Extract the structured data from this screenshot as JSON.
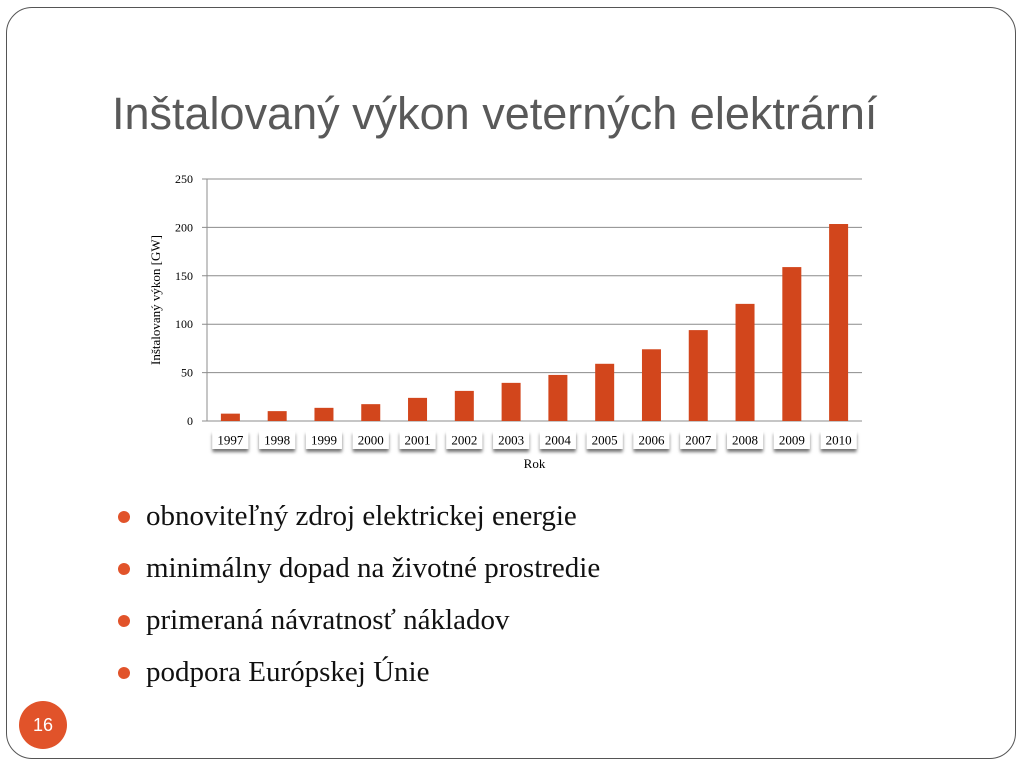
{
  "slide": {
    "title": "Inštalovaný výkon veterných elektrární",
    "page_number": "16",
    "accent_color": "#e1532a"
  },
  "bullets": [
    "obnoviteľný zdroj elektrickej energie",
    "minimálny dopad na životné prostredie",
    "primeraná návratnosť nákladov",
    "podpora Európskej Únie"
  ],
  "chart_data": {
    "type": "bar",
    "categories": [
      "1997",
      "1998",
      "1999",
      "2000",
      "2001",
      "2002",
      "2003",
      "2004",
      "2005",
      "2006",
      "2007",
      "2008",
      "2009",
      "2010"
    ],
    "values": [
      7.6,
      10.2,
      13.6,
      17.4,
      23.9,
      31.1,
      39.4,
      47.6,
      59.1,
      74.1,
      93.9,
      121.0,
      159.0,
      203.5
    ],
    "xlabel": "Rok",
    "ylabel": "Inštalovaný výkon [GW]",
    "ylim": [
      0,
      250
    ],
    "yticks": [
      0,
      50,
      100,
      150,
      200,
      250
    ],
    "grid": true,
    "bar_color": "#d2461c"
  }
}
